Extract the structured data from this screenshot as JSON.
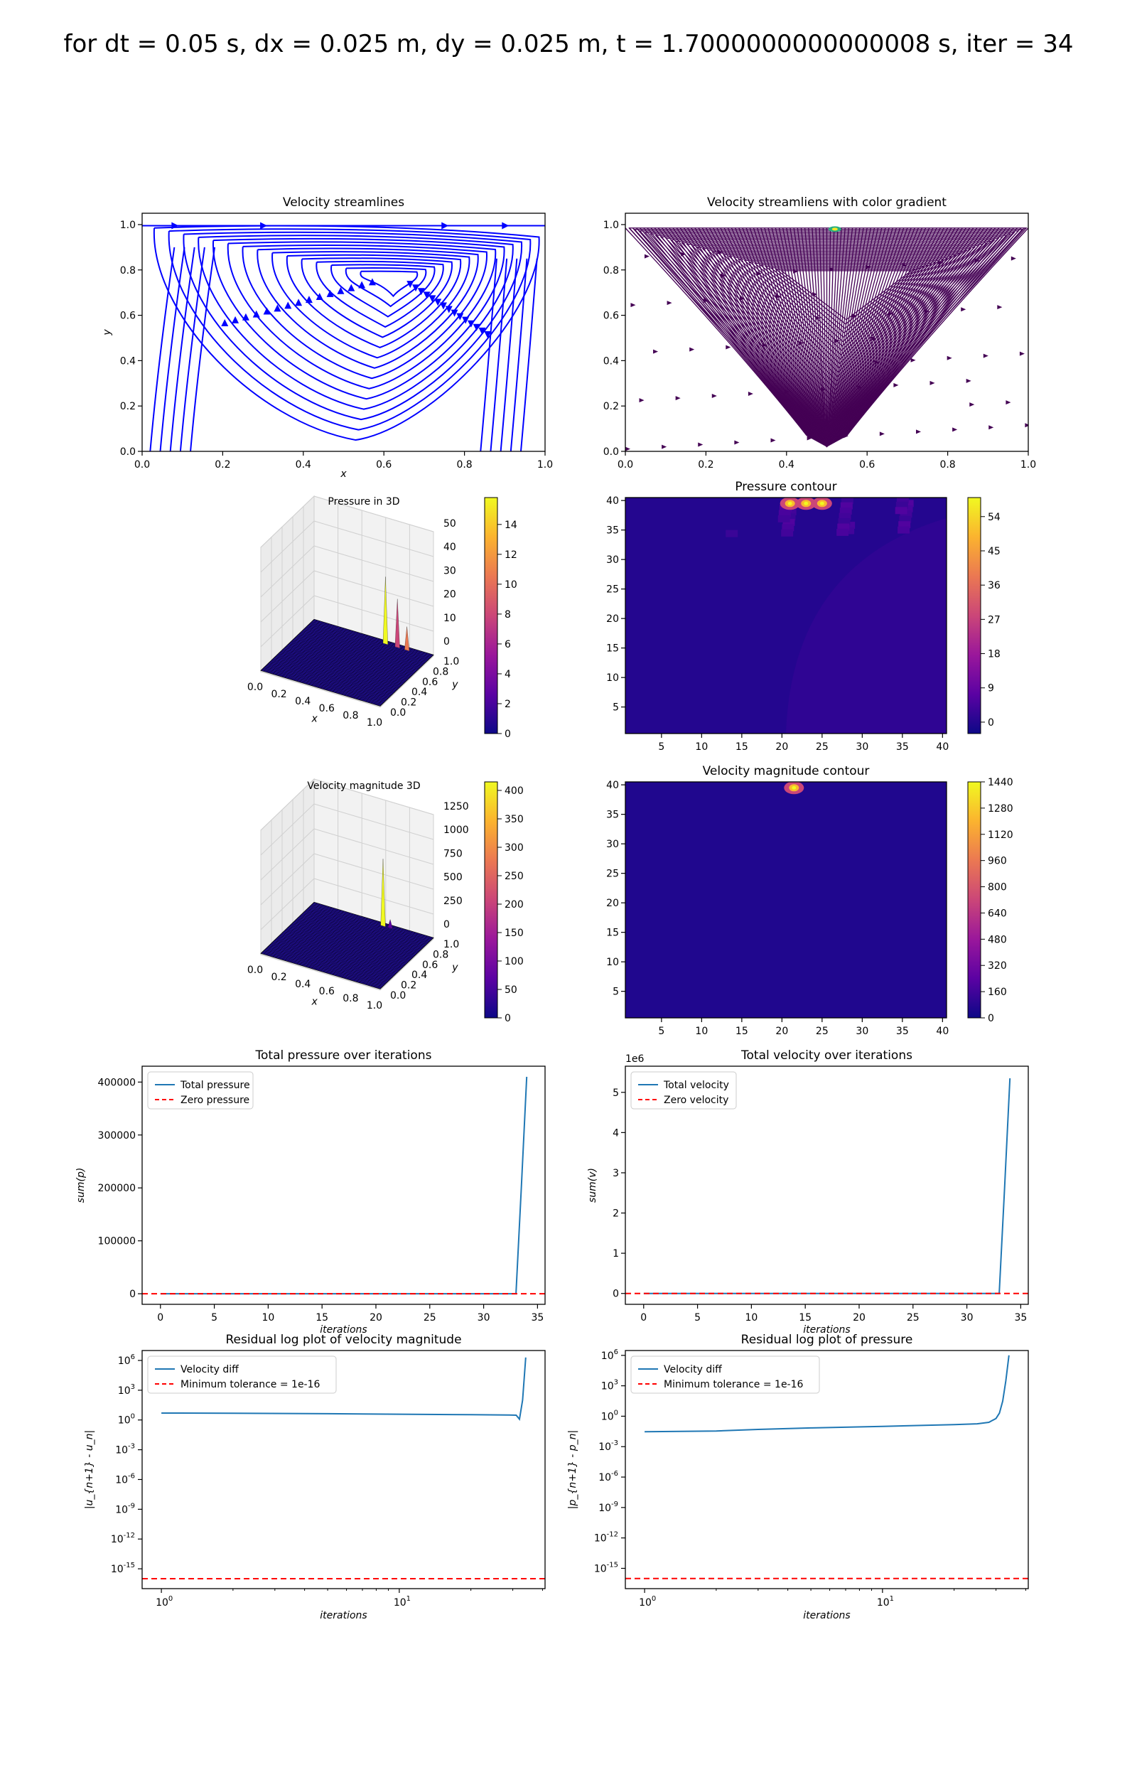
{
  "figure": {
    "suptitle": "for dt = 0.05 s, dx = 0.025 m, dy = 0.025 m, t = 1.7000000000000008 s, iter = 34"
  },
  "chart_data": [
    {
      "id": "velocity-streamlines",
      "type": "streamplot",
      "title": "Velocity streamlines",
      "xlabel": "x",
      "ylabel": "y",
      "xlim": [
        0,
        1
      ],
      "ylim": [
        0,
        1.05
      ],
      "xticks": [
        "0.0",
        "0.2",
        "0.4",
        "0.6",
        "0.8",
        "1.0"
      ],
      "yticks": [
        "0.0",
        "0.2",
        "0.4",
        "0.6",
        "0.8",
        "1.0"
      ],
      "line_color": "#0000ff",
      "vortex_center": [
        0.63,
        0.76
      ]
    },
    {
      "id": "velocity-streamlines-gradient",
      "type": "streamplot",
      "title": "Velocity streamliens with color gradient",
      "xlim": [
        0,
        1
      ],
      "ylim": [
        0,
        1.05
      ],
      "xticks": [
        "0.0",
        "0.2",
        "0.4",
        "0.6",
        "0.8",
        "1.0"
      ],
      "yticks": [
        "0.0",
        "0.2",
        "0.4",
        "0.6",
        "0.8",
        "1.0"
      ],
      "line_color": "#440154",
      "highlight_color": "#2ab07f"
    },
    {
      "id": "pressure-3d",
      "type": "surface3d",
      "title": "Pressure in 3D",
      "xlabel": "x",
      "ylabel": "y",
      "xticks": [
        "0.0",
        "0.2",
        "0.4",
        "0.6",
        "0.8",
        "1.0"
      ],
      "yticks": [
        "0.0",
        "0.2",
        "0.4",
        "0.6",
        "0.8",
        "1.0"
      ],
      "zticks": [
        "0",
        "10",
        "20",
        "30",
        "40",
        "50"
      ],
      "colorbar_ticks": [
        "0",
        "2",
        "4",
        "6",
        "8",
        "10",
        "12",
        "14"
      ],
      "colorbar_range": [
        0,
        15.8
      ],
      "surface_color": "#1f0e8c"
    },
    {
      "id": "pressure-contour",
      "type": "heatmap",
      "title": "Pressure contour",
      "xticks": [
        "5",
        "10",
        "15",
        "20",
        "25",
        "30",
        "35",
        "40"
      ],
      "yticks": [
        "5",
        "10",
        "15",
        "20",
        "25",
        "30",
        "35",
        "40"
      ],
      "xlim": [
        0.5,
        40.5
      ],
      "ylim": [
        0.5,
        40.5
      ],
      "colorbar_ticks": [
        "0",
        "9",
        "18",
        "27",
        "36",
        "45",
        "54"
      ],
      "colorbar_range": [
        -3,
        59
      ],
      "hotspots": [
        [
          21,
          39.5
        ],
        [
          23,
          39.5
        ],
        [
          25,
          39.5
        ]
      ]
    },
    {
      "id": "velocity-magnitude-3d",
      "type": "surface3d",
      "title": "Velocity magnitude 3D",
      "xlabel": "x",
      "ylabel": "y",
      "xticks": [
        "0.0",
        "0.2",
        "0.4",
        "0.6",
        "0.8",
        "1.0"
      ],
      "yticks": [
        "0.0",
        "0.2",
        "0.4",
        "0.6",
        "0.8",
        "1.0"
      ],
      "zticks": [
        "0",
        "250",
        "500",
        "750",
        "1000",
        "1250"
      ],
      "colorbar_ticks": [
        "0",
        "50",
        "100",
        "150",
        "200",
        "250",
        "300",
        "350",
        "400"
      ],
      "colorbar_range": [
        0,
        415
      ],
      "surface_color": "#1f0e8c"
    },
    {
      "id": "velocity-magnitude-contour",
      "type": "heatmap",
      "title": "Velocity magnitude contour",
      "xticks": [
        "5",
        "10",
        "15",
        "20",
        "25",
        "30",
        "35",
        "40"
      ],
      "yticks": [
        "5",
        "10",
        "15",
        "20",
        "25",
        "30",
        "35",
        "40"
      ],
      "xlim": [
        0.5,
        40.5
      ],
      "ylim": [
        0.5,
        40.5
      ],
      "colorbar_ticks": [
        "0",
        "160",
        "320",
        "480",
        "640",
        "800",
        "960",
        "1120",
        "1280",
        "1440"
      ],
      "colorbar_range": [
        0,
        1440
      ],
      "hotspots": [
        [
          21.5,
          39.5
        ]
      ]
    },
    {
      "id": "total-pressure",
      "type": "line",
      "title": "Total pressure over iterations",
      "xlabel": "iterations",
      "ylabel": "sum(p)",
      "xlim": [
        -1.7,
        35.7
      ],
      "ylim": [
        -20000,
        430000
      ],
      "xticks": [
        0,
        5,
        10,
        15,
        20,
        25,
        30,
        35
      ],
      "yticks": [
        0,
        100000,
        200000,
        300000,
        400000
      ],
      "ytick_labels": [
        "0",
        "100000",
        "200000",
        "300000",
        "400000"
      ],
      "series": [
        {
          "name": "Total pressure",
          "color": "#1f77b4",
          "style": "solid",
          "x": [
            0,
            33,
            33.5,
            34
          ],
          "y": [
            0,
            0,
            200000,
            410000
          ]
        },
        {
          "name": "Zero pressure",
          "color": "#ff0000",
          "style": "dashed",
          "x": [
            -1.7,
            35.7
          ],
          "y": [
            0,
            0
          ]
        }
      ],
      "legend": "top-left"
    },
    {
      "id": "total-velocity",
      "type": "line",
      "title": "Total velocity over iterations",
      "xlabel": "iterations",
      "ylabel": "sum(v)",
      "offset_label": "1e6",
      "xlim": [
        -1.7,
        35.7
      ],
      "ylim": [
        -0.27,
        5.65
      ],
      "xticks": [
        0,
        5,
        10,
        15,
        20,
        25,
        30,
        35
      ],
      "yticks": [
        0,
        1,
        2,
        3,
        4,
        5
      ],
      "ytick_labels": [
        "0",
        "1",
        "2",
        "3",
        "4",
        "5"
      ],
      "series": [
        {
          "name": "Total velocity",
          "color": "#1f77b4",
          "style": "solid",
          "x": [
            0,
            33,
            33.5,
            34
          ],
          "y": [
            0,
            0,
            2.6,
            5.35
          ]
        },
        {
          "name": "Zero velocity",
          "color": "#ff0000",
          "style": "dashed",
          "x": [
            -1.7,
            35.7
          ],
          "y": [
            0,
            0
          ]
        }
      ],
      "legend": "top-left"
    },
    {
      "id": "residual-velocity",
      "type": "line",
      "title": "Residual log plot of velocity magnitude",
      "xlabel": "iterations",
      "ylabel": "|u_{n+1} - u_n|",
      "xscale": "log",
      "yscale": "log",
      "xlim": [
        0.83,
        41
      ],
      "ylim": [
        1e-17,
        10000000.0
      ],
      "xticks": [
        1,
        10
      ],
      "xtick_labels": [
        "10^0",
        "10^1"
      ],
      "yticks": [
        1e-15,
        1e-12,
        1e-09,
        1e-06,
        0.001,
        1,
        1000.0,
        1000000.0
      ],
      "ytick_labels": [
        "10^-15",
        "10^-12",
        "10^-9",
        "10^-6",
        "10^-3",
        "10^0",
        "10^3",
        "10^6"
      ],
      "series": [
        {
          "name": "Velocity diff",
          "color": "#1f77b4",
          "style": "solid",
          "x": [
            1,
            2,
            5,
            10,
            20,
            29,
            31,
            32,
            33,
            34
          ],
          "y": [
            5,
            4.8,
            4.3,
            3.8,
            3.4,
            3.1,
            3.0,
            1.2,
            100,
            2000000
          ]
        },
        {
          "name": "Minimum tolerance = 1e-16",
          "color": "#ff0000",
          "style": "dashed",
          "x": [
            0.83,
            41
          ],
          "y": [
            1e-16,
            1e-16
          ]
        }
      ],
      "legend": "top-left"
    },
    {
      "id": "residual-pressure",
      "type": "line",
      "title": "Residual log plot of pressure",
      "xlabel": "iterations",
      "ylabel": "|p_{n+1} - p_n|",
      "xscale": "log",
      "yscale": "log",
      "xlim": [
        0.83,
        41
      ],
      "ylim": [
        1e-17,
        3000000.0
      ],
      "xticks": [
        1,
        10
      ],
      "xtick_labels": [
        "10^0",
        "10^1"
      ],
      "yticks": [
        1e-15,
        1e-12,
        1e-09,
        1e-06,
        0.001,
        1,
        1000.0,
        1000000.0
      ],
      "ytick_labels": [
        "10^-15",
        "10^-12",
        "10^-9",
        "10^-6",
        "10^-3",
        "10^0",
        "10^3",
        "10^6"
      ],
      "series": [
        {
          "name": "Velocity diff",
          "color": "#1f77b4",
          "style": "solid",
          "x": [
            1,
            2,
            3,
            5,
            10,
            20,
            25,
            28,
            30,
            31,
            32,
            33,
            34
          ],
          "y": [
            0.03,
            0.035,
            0.05,
            0.07,
            0.1,
            0.15,
            0.18,
            0.25,
            0.6,
            2,
            30,
            3000,
            1000000
          ]
        },
        {
          "name": "Minimum tolerance = 1e-16",
          "color": "#ff0000",
          "style": "dashed",
          "x": [
            0.83,
            41
          ],
          "y": [
            1e-16,
            1e-16
          ]
        }
      ],
      "legend": "top-left"
    }
  ]
}
